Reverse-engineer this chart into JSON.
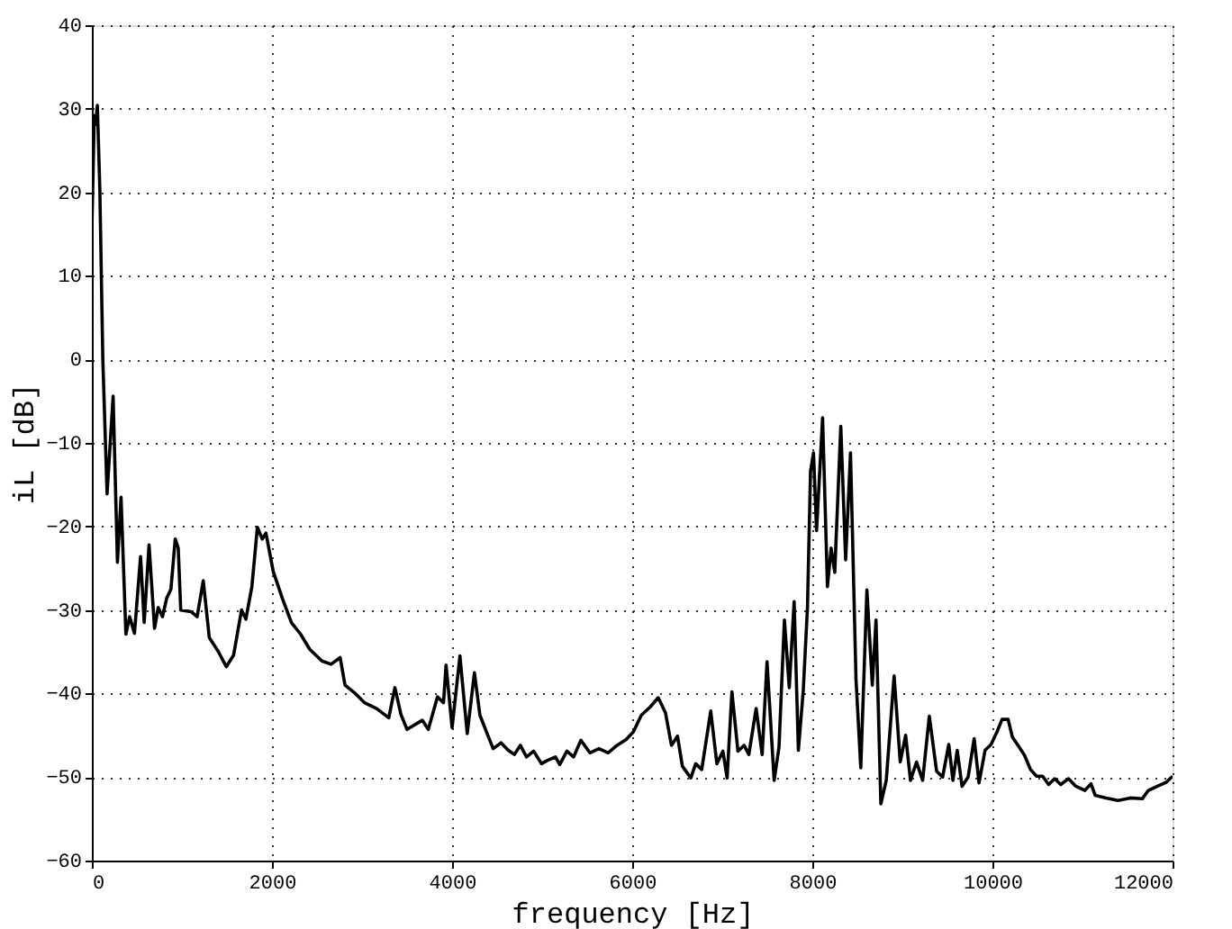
{
  "chart_data": {
    "type": "line",
    "xlabel": "frequency [Hz]",
    "ylabel": "iL [dB]",
    "xlim": [
      0,
      12000
    ],
    "ylim": [
      -60,
      40
    ],
    "xticks": [
      0,
      2000,
      4000,
      6000,
      8000,
      10000,
      12000
    ],
    "yticks": [
      -60,
      -50,
      -40,
      -30,
      -20,
      -10,
      0,
      10,
      20,
      30,
      40
    ],
    "grid": true,
    "line_style": "solid",
    "marker": "none",
    "series": [
      {
        "color": "#000000",
        "x": [
          0,
          27,
          41,
          61,
          88,
          122,
          169,
          236,
          284,
          324,
          378,
          419,
          473,
          541,
          581,
          635,
          696,
          737,
          784,
          831,
          878,
          926,
          959,
          987,
          1101,
          1169,
          1237,
          1304,
          1405,
          1493,
          1574,
          1662,
          1710,
          1777,
          1838,
          1892,
          1933,
          2014,
          2115,
          2216,
          2318,
          2419,
          2554,
          2656,
          2757,
          2811,
          2926,
          3027,
          3162,
          3297,
          3365,
          3432,
          3500,
          3669,
          3736,
          3838,
          3905,
          3933,
          4000,
          4087,
          4168,
          4248,
          4309,
          4389,
          4456,
          4544,
          4624,
          4691,
          4758,
          4826,
          4906,
          4993,
          5060,
          5148,
          5195,
          5275,
          5349,
          5430,
          5530,
          5631,
          5732,
          5832,
          5933,
          6013,
          6101,
          6201,
          6289,
          6369,
          6436,
          6503,
          6557,
          6651,
          6705,
          6772,
          6872,
          6940,
          7007,
          7054,
          7107,
          7174,
          7242,
          7295,
          7376,
          7443,
          7497,
          7576,
          7630,
          7690,
          7744,
          7798,
          7845,
          7899,
          7946,
          7980,
          8013,
          8047,
          8114,
          8168,
          8209,
          8249,
          8316,
          8370,
          8424,
          8485,
          8538,
          8606,
          8666,
          8707,
          8761,
          8821,
          8908,
          8976,
          9036,
          9090,
          9157,
          9225,
          9299,
          9380,
          9447,
          9515,
          9561,
          9609,
          9662,
          9730,
          9797,
          9851,
          9918,
          9985,
          10054,
          10107,
          10174,
          10221,
          10289,
          10356,
          10423,
          10490,
          10557,
          10624,
          10691,
          10758,
          10845,
          10926,
          11027,
          11094,
          11141,
          11261,
          11396,
          11530,
          11664,
          11731,
          11832,
          11933,
          12000
        ],
        "values": [
          15.6,
          29.2,
          28.1,
          30.4,
          20.6,
          -0.1,
          -16.1,
          -4.4,
          -24.3,
          -16.5,
          -32.9,
          -30.8,
          -32.8,
          -23.6,
          -31.5,
          -22.2,
          -32.2,
          -29.7,
          -30.8,
          -28.6,
          -27.5,
          -21.5,
          -22.6,
          -30.0,
          -30.2,
          -30.8,
          -26.5,
          -33.3,
          -35.0,
          -36.8,
          -35.4,
          -30.0,
          -31.1,
          -27.2,
          -20.1,
          -21.5,
          -20.8,
          -25.4,
          -28.6,
          -31.5,
          -32.9,
          -34.7,
          -36.1,
          -36.5,
          -35.7,
          -39.0,
          -40.0,
          -41.1,
          -41.8,
          -42.9,
          -39.3,
          -42.5,
          -44.3,
          -43.2,
          -44.3,
          -40.4,
          -41.1,
          -36.6,
          -44.1,
          -35.5,
          -44.8,
          -37.5,
          -42.6,
          -44.8,
          -46.6,
          -45.9,
          -46.8,
          -47.3,
          -46.2,
          -47.6,
          -46.9,
          -48.4,
          -48.0,
          -47.6,
          -48.5,
          -46.9,
          -47.6,
          -45.6,
          -47.1,
          -46.6,
          -47.1,
          -46.2,
          -45.5,
          -44.6,
          -42.6,
          -41.6,
          -40.5,
          -42.3,
          -46.2,
          -45.1,
          -48.7,
          -50.1,
          -48.4,
          -49.1,
          -42.1,
          -48.4,
          -46.9,
          -50.1,
          -39.8,
          -46.9,
          -46.2,
          -47.3,
          -41.8,
          -47.3,
          -36.2,
          -50.4,
          -46.4,
          -31.2,
          -39.3,
          -29.0,
          -46.8,
          -39.7,
          -29.7,
          -13.4,
          -11.2,
          -20.5,
          -7.0,
          -27.2,
          -22.6,
          -25.5,
          -8.0,
          -24.0,
          -11.2,
          -38.3,
          -48.9,
          -27.6,
          -39.0,
          -31.2,
          -53.2,
          -50.4,
          -37.9,
          -48.2,
          -45.0,
          -50.4,
          -48.2,
          -50.4,
          -42.7,
          -49.3,
          -50.0,
          -46.1,
          -50.4,
          -46.8,
          -51.1,
          -50.0,
          -45.4,
          -50.7,
          -46.8,
          -46.1,
          -44.5,
          -43.1,
          -43.1,
          -45.2,
          -46.3,
          -47.4,
          -49.1,
          -49.9,
          -49.9,
          -50.9,
          -50.2,
          -50.9,
          -50.2,
          -51.1,
          -51.6,
          -50.8,
          -52.2,
          -52.5,
          -52.8,
          -52.5,
          -52.6,
          -51.6,
          -51.1,
          -50.6,
          -49.9
        ]
      }
    ]
  }
}
